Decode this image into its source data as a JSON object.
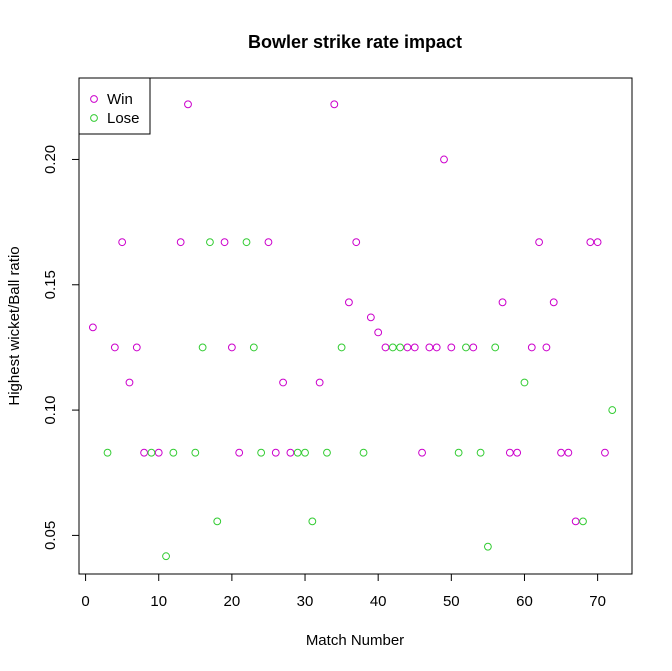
{
  "chart_data": {
    "type": "scatter",
    "title": "Bowler strike rate impact",
    "xlabel": "Match Number",
    "ylabel": "Highest wicket/Ball ratio",
    "xlim": [
      -0.9,
      74.7
    ],
    "ylim": [
      0.0346,
      0.2325
    ],
    "xticks": [
      0,
      10,
      20,
      30,
      40,
      50,
      60,
      70
    ],
    "yticks": [
      0.05,
      0.1,
      0.15,
      0.2
    ],
    "ytick_labels": [
      "0.05",
      "0.10",
      "0.15",
      "0.20"
    ],
    "legend": {
      "position": "top-left"
    },
    "series": [
      {
        "name": "Win",
        "color": "#cc00cc",
        "x": [
          1,
          4,
          5,
          6,
          7,
          8,
          10,
          13,
          14,
          19,
          20,
          21,
          25,
          26,
          27,
          28,
          32,
          34,
          36,
          37,
          39,
          40,
          41,
          44,
          45,
          46,
          47,
          48,
          49,
          50,
          53,
          57,
          58,
          59,
          61,
          62,
          63,
          64,
          65,
          66,
          67,
          69,
          70,
          71
        ],
        "y": [
          0.133,
          0.125,
          0.167,
          0.111,
          0.125,
          0.083,
          0.083,
          0.167,
          0.222,
          0.167,
          0.125,
          0.083,
          0.167,
          0.083,
          0.111,
          0.083,
          0.111,
          0.222,
          0.143,
          0.167,
          0.137,
          0.131,
          0.125,
          0.125,
          0.125,
          0.083,
          0.125,
          0.125,
          0.2,
          0.125,
          0.125,
          0.143,
          0.083,
          0.083,
          0.125,
          0.167,
          0.125,
          0.143,
          0.083,
          0.083,
          0.0556,
          0.167,
          0.167,
          0.083
        ]
      },
      {
        "name": "Lose",
        "color": "#33cc33",
        "x": [
          3,
          9,
          11,
          12,
          15,
          16,
          17,
          18,
          22,
          23,
          24,
          29,
          30,
          31,
          33,
          35,
          38,
          42,
          43,
          51,
          52,
          54,
          55,
          56,
          60,
          68,
          72
        ],
        "y": [
          0.083,
          0.083,
          0.0417,
          0.083,
          0.083,
          0.125,
          0.167,
          0.0556,
          0.167,
          0.125,
          0.083,
          0.083,
          0.083,
          0.0556,
          0.083,
          0.125,
          0.083,
          0.125,
          0.125,
          0.083,
          0.125,
          0.083,
          0.0455,
          0.125,
          0.111,
          0.0556,
          0.1
        ]
      }
    ]
  }
}
